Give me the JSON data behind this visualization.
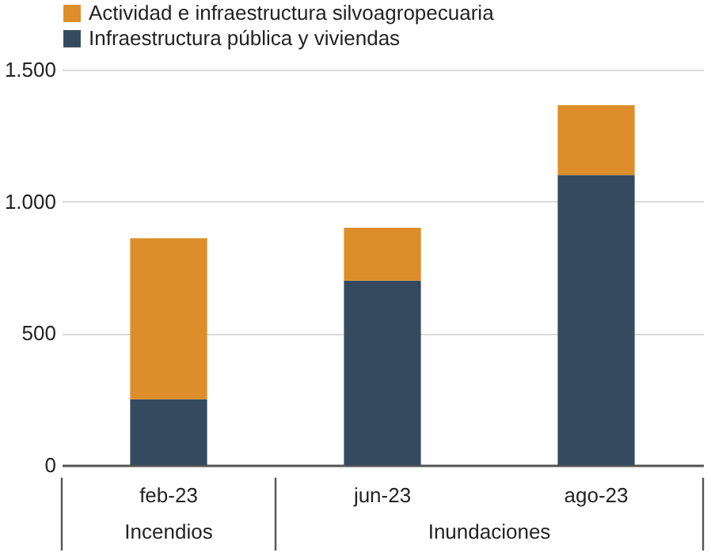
{
  "chart_data": {
    "type": "bar",
    "stacked": true,
    "categories": [
      "feb-23",
      "jun-23",
      "ago-23"
    ],
    "series": [
      {
        "name": "Infraestructura pública y viviendas",
        "color": "#344a5e",
        "values": [
          250,
          700,
          1100
        ]
      },
      {
        "name": "Actividad e infraestructura silvoagropecuaria",
        "color": "#dd8d2a",
        "values": [
          610,
          200,
          265
        ]
      }
    ],
    "ylim": [
      0,
      1500
    ],
    "yticks": [
      0,
      500,
      {
        "value": 1000,
        "label": "1.000"
      },
      {
        "value": 1500,
        "label": "1.500"
      }
    ],
    "grid": "y",
    "legend": "top left",
    "annotations": [
      "Incendios",
      "Inundaciones"
    ]
  }
}
